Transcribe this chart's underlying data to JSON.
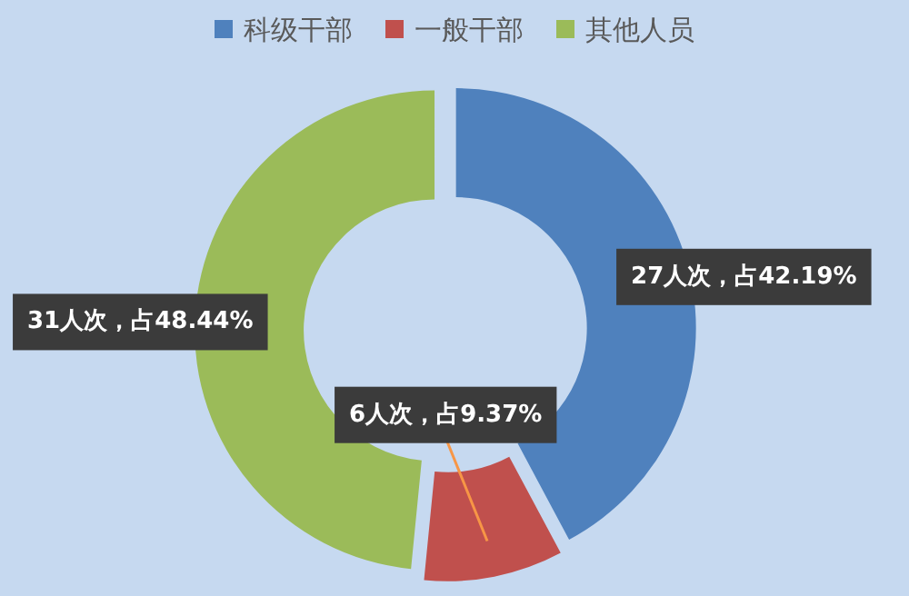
{
  "chart_data": {
    "type": "donut",
    "categories": [
      "科级干部",
      "一般干部",
      "其他人员"
    ],
    "values": [
      27,
      6,
      31
    ],
    "colors": [
      "#4f81bd",
      "#c0504d",
      "#9bbb59"
    ],
    "value_labels": [
      "27人次，占42.19%",
      "6人次，占9.37%",
      "31人次，占48.44%"
    ],
    "legend": "top"
  }
}
